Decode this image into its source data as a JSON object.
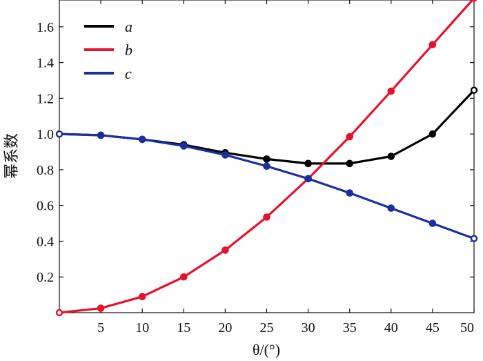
{
  "chart_data": {
    "type": "line",
    "xlabel": "θ/(°)",
    "ylabel": "幂系数",
    "xlim": [
      0,
      50
    ],
    "ylim": [
      0,
      1.75
    ],
    "x_ticks": [
      5,
      10,
      15,
      20,
      25,
      30,
      35,
      40,
      45,
      50
    ],
    "y_ticks": [
      0.2,
      0.4,
      0.6,
      0.8,
      1.0,
      1.2,
      1.4,
      1.6
    ],
    "x_tick_labels": [
      "5",
      "10",
      "15",
      "20",
      "25",
      "30",
      "35",
      "40",
      "45",
      "50"
    ],
    "y_tick_labels": [
      "0.2",
      "0.4",
      "0.6",
      "0.8",
      "1.0",
      "1.2",
      "1.4",
      "1.6"
    ],
    "grid": false,
    "legend_position": "top-left",
    "x": [
      0,
      5,
      10,
      15,
      20,
      25,
      30,
      35,
      40,
      45,
      50
    ],
    "series": [
      {
        "name": "a",
        "color": "#000000",
        "values": [
          1.0,
          0.993,
          0.97,
          0.94,
          0.895,
          0.86,
          0.835,
          0.835,
          0.875,
          1.0,
          1.245
        ]
      },
      {
        "name": "b",
        "color": "#e8112d",
        "values": [
          0.0,
          0.025,
          0.09,
          0.2,
          0.35,
          0.535,
          0.75,
          0.985,
          1.24,
          1.5,
          1.76
        ]
      },
      {
        "name": "c",
        "color": "#1a2fa0",
        "values": [
          1.0,
          0.993,
          0.97,
          0.933,
          0.883,
          0.82,
          0.75,
          0.67,
          0.585,
          0.5,
          0.415
        ]
      }
    ]
  }
}
